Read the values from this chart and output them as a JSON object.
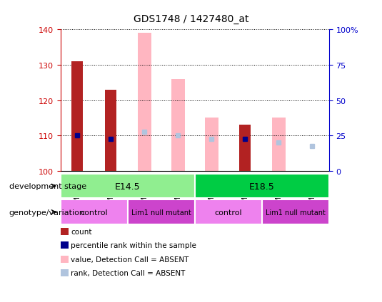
{
  "title": "GDS1748 / 1427480_at",
  "samples": [
    "GSM96563",
    "GSM96564",
    "GSM96565",
    "GSM96566",
    "GSM96567",
    "GSM96568",
    "GSM96569",
    "GSM96570"
  ],
  "ylim_left": [
    100,
    140
  ],
  "ylim_right": [
    0,
    100
  ],
  "yticks_left": [
    100,
    110,
    120,
    130,
    140
  ],
  "yticks_right": [
    0,
    25,
    50,
    75,
    100
  ],
  "ytick_labels_right": [
    "0",
    "25",
    "50",
    "75",
    "100%"
  ],
  "count_values": [
    131,
    123,
    null,
    null,
    null,
    113,
    null,
    null
  ],
  "count_color": "#b22222",
  "percentile_values": [
    110,
    109,
    null,
    null,
    null,
    109,
    null,
    null
  ],
  "percentile_color": "#00008b",
  "absent_value_values": [
    null,
    null,
    139,
    126,
    115,
    null,
    115,
    null
  ],
  "absent_value_color": "#ffb6c1",
  "absent_rank_values": [
    null,
    null,
    111,
    110,
    109,
    null,
    108,
    107
  ],
  "absent_rank_color": "#b0c4de",
  "dev_stage_color_e145": "#90ee90",
  "dev_stage_color_e185": "#00cc44",
  "geno_control_color": "#ee82ee",
  "geno_lim1_color": "#cc44cc",
  "axis_left_color": "#cc0000",
  "axis_right_color": "#0000cc",
  "bar_width": 0.35,
  "absent_bar_width": 0.4,
  "legend_items": [
    {
      "color": "#b22222",
      "label": "count"
    },
    {
      "color": "#00008b",
      "label": "percentile rank within the sample"
    },
    {
      "color": "#ffb6c1",
      "label": "value, Detection Call = ABSENT"
    },
    {
      "color": "#b0c4de",
      "label": "rank, Detection Call = ABSENT"
    }
  ]
}
